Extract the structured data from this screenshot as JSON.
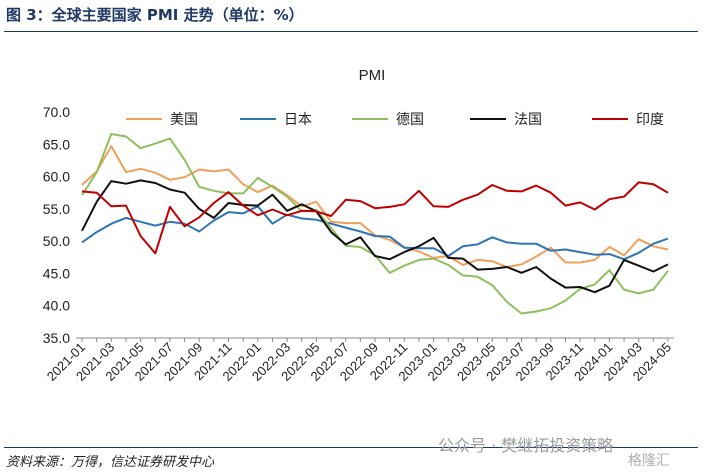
{
  "figure_title": "图 3：全球主要国家 PMI 走势（单位：%）",
  "source": "资料来源：万得，信达证券研发中心",
  "watermark": "公众号 · 樊继拓投资策略",
  "watermark_logo": "格隆汇",
  "chart_data": {
    "type": "line",
    "title": "PMI",
    "xlabel": "",
    "ylabel": "",
    "ylim": [
      35,
      70
    ],
    "yticks": [
      35,
      40,
      45,
      50,
      55,
      60,
      65,
      70
    ],
    "ytick_labels": [
      "35.0",
      "40.0",
      "45.0",
      "50.0",
      "55.0",
      "60.0",
      "65.0",
      "70.0"
    ],
    "xtick_labels": [
      "2021-01",
      "2021-03",
      "2021-05",
      "2021-07",
      "2021-09",
      "2021-11",
      "2022-01",
      "2022-03",
      "2022-05",
      "2022-07",
      "2022-09",
      "2022-11",
      "2023-01",
      "2023-03",
      "2023-05",
      "2023-07",
      "2023-09",
      "2023-11",
      "2024-01",
      "2024-03",
      "2024-05"
    ],
    "grid": false,
    "legend_position": "top",
    "x": [
      "2021-01",
      "2021-02",
      "2021-03",
      "2021-04",
      "2021-05",
      "2021-06",
      "2021-07",
      "2021-08",
      "2021-09",
      "2021-10",
      "2021-11",
      "2021-12",
      "2022-01",
      "2022-02",
      "2022-03",
      "2022-04",
      "2022-05",
      "2022-06",
      "2022-07",
      "2022-08",
      "2022-09",
      "2022-10",
      "2022-11",
      "2022-12",
      "2023-01",
      "2023-02",
      "2023-03",
      "2023-04",
      "2023-05",
      "2023-06",
      "2023-07",
      "2023-08",
      "2023-09",
      "2023-10",
      "2023-11",
      "2023-12",
      "2024-01",
      "2024-02",
      "2024-03",
      "2024-04",
      "2024-05"
    ],
    "series": [
      {
        "name": "美国",
        "color": "#f0a05a",
        "values": [
          58.7,
          60.8,
          64.7,
          60.7,
          61.2,
          60.6,
          59.5,
          59.9,
          61.1,
          60.8,
          61.1,
          58.8,
          57.6,
          58.6,
          57.1,
          55.4,
          56.1,
          53.0,
          52.8,
          52.8,
          50.9,
          50.2,
          49.0,
          48.4,
          47.4,
          47.7,
          46.3,
          47.1,
          46.9,
          46.0,
          46.4,
          47.6,
          49.0,
          46.7,
          46.7,
          47.1,
          49.1,
          47.8,
          50.3,
          49.2,
          48.7
        ]
      },
      {
        "name": "日本",
        "color": "#2e75b6",
        "values": [
          49.8,
          51.4,
          52.7,
          53.6,
          53.0,
          52.4,
          53.0,
          52.7,
          51.5,
          53.2,
          54.5,
          54.3,
          55.4,
          52.7,
          54.1,
          53.5,
          53.3,
          52.7,
          52.1,
          51.5,
          50.8,
          50.7,
          49.0,
          48.9,
          48.9,
          47.7,
          49.2,
          49.5,
          50.6,
          49.8,
          49.6,
          49.6,
          48.5,
          48.7,
          48.3,
          47.9,
          48.0,
          47.2,
          48.2,
          49.6,
          50.4
        ]
      },
      {
        "name": "德国",
        "color": "#8fbf5f",
        "values": [
          57.1,
          60.7,
          66.6,
          66.2,
          64.4,
          65.1,
          65.9,
          62.6,
          58.4,
          57.8,
          57.4,
          57.4,
          59.8,
          58.4,
          56.9,
          54.6,
          54.8,
          52.0,
          49.3,
          49.1,
          47.8,
          45.1,
          46.2,
          47.1,
          47.3,
          46.3,
          44.7,
          44.5,
          43.2,
          40.6,
          38.8,
          39.1,
          39.6,
          40.8,
          42.6,
          43.3,
          45.5,
          42.5,
          41.9,
          42.5,
          45.4
        ]
      },
      {
        "name": "法国",
        "color": "#111111",
        "values": [
          51.6,
          56.1,
          59.3,
          58.9,
          59.4,
          59.0,
          58.0,
          57.5,
          55.0,
          53.6,
          55.9,
          55.6,
          55.5,
          57.2,
          54.7,
          55.7,
          54.6,
          51.4,
          49.5,
          50.6,
          47.7,
          47.2,
          48.3,
          49.2,
          50.5,
          47.4,
          47.3,
          45.6,
          45.7,
          46.0,
          45.1,
          46.0,
          44.2,
          42.8,
          42.9,
          42.1,
          43.1,
          47.1,
          46.2,
          45.3,
          46.4
        ]
      },
      {
        "name": "印度",
        "color": "#c00000",
        "values": [
          57.7,
          57.5,
          55.4,
          55.5,
          50.8,
          48.1,
          55.3,
          52.3,
          53.7,
          55.9,
          57.6,
          55.5,
          54.0,
          54.9,
          54.0,
          54.7,
          54.6,
          53.9,
          56.4,
          56.2,
          55.1,
          55.3,
          55.7,
          57.8,
          55.4,
          55.3,
          56.4,
          57.2,
          58.7,
          57.8,
          57.7,
          58.6,
          57.5,
          55.5,
          56.0,
          54.9,
          56.5,
          56.9,
          59.1,
          58.8,
          57.5
        ]
      }
    ]
  }
}
